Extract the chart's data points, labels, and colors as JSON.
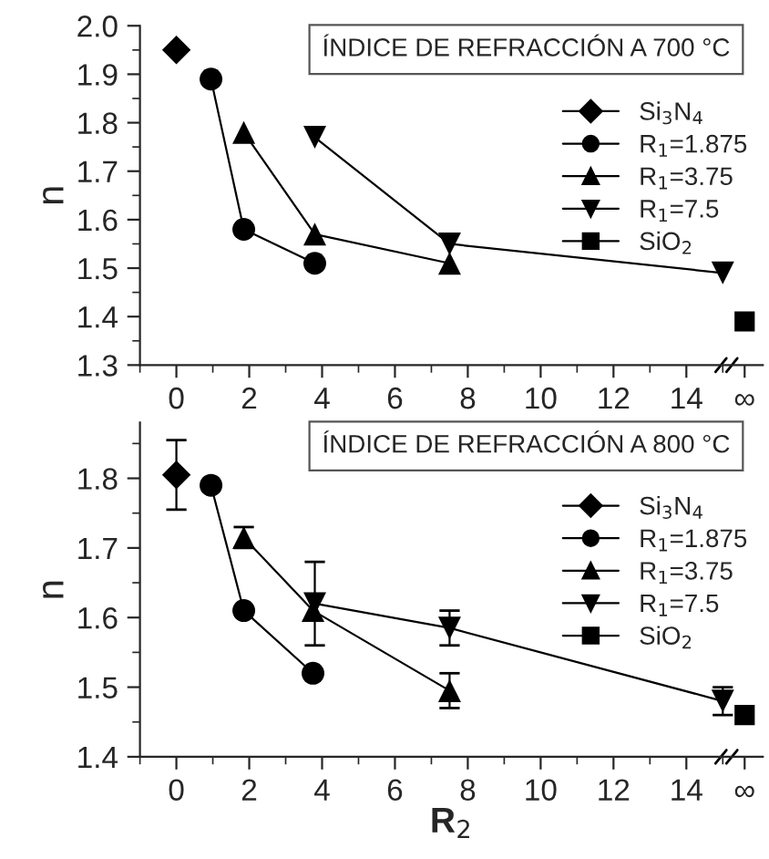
{
  "chart_data": [
    {
      "type": "line",
      "ylabel": "n",
      "annotations": [
        "ÍNDICE DE REFRACCIÓN A 700 °C"
      ],
      "xlim": [
        -0.9,
        16.1
      ],
      "ylim": [
        1.3,
        2.0
      ],
      "xticks": [
        0,
        2,
        4,
        6,
        8,
        10,
        12,
        14,
        {
          "value": 15.6,
          "label": "∞"
        }
      ],
      "yticks": [
        1.3,
        1.4,
        1.5,
        1.6,
        1.7,
        1.8,
        1.9,
        {
          "value": 2.0,
          "label": "2.0"
        }
      ],
      "legend": "right",
      "grid": false,
      "series": [
        {
          "name": "Si$_{3}$N$_{4}$",
          "type": "scatter",
          "marker": "diamond",
          "color": "#000000",
          "x": [
            0
          ],
          "values": [
            1.95
          ]
        },
        {
          "name": "R$_{1}$=1.875",
          "marker": "circle",
          "color": "#000000",
          "x": [
            0.95,
            1.85,
            3.8
          ],
          "values": [
            1.89,
            1.58,
            1.51
          ]
        },
        {
          "name": "R$_{1}$=3.75",
          "marker": "triangle",
          "color": "#000000",
          "x": [
            1.85,
            3.8,
            7.5
          ],
          "values": [
            1.78,
            1.57,
            1.51
          ]
        },
        {
          "name": "R$_{1}$=7.5",
          "marker": "triangle_down",
          "color": "#000000",
          "x": [
            3.8,
            7.5,
            15
          ],
          "values": [
            1.77,
            1.55,
            1.49
          ]
        },
        {
          "name": "SiO$_{2}$",
          "type": "scatter",
          "marker": "square",
          "color": "#000000",
          "x": [
            15.6
          ],
          "values": [
            1.39
          ]
        }
      ]
    },
    {
      "type": "line",
      "xlabel": "R$_{2}$",
      "ylabel": "n",
      "annotations": [
        "ÍNDICE DE REFRACCIÓN A 800 °C"
      ],
      "xlim": [
        -0.9,
        16.1
      ],
      "ylim": [
        1.4,
        1.88
      ],
      "xticks": [
        0,
        2,
        4,
        6,
        8,
        10,
        12,
        14,
        {
          "value": 15.6,
          "label": "∞"
        }
      ],
      "yticks": [
        1.4,
        1.5,
        1.6,
        1.7,
        1.8
      ],
      "legend": "right",
      "grid": false,
      "series": [
        {
          "name": "Si$_{3}$N$_{4}$",
          "type": "scatter",
          "marker": "diamond",
          "color": "#000000",
          "x": [
            0
          ],
          "values": [
            1.805
          ],
          "errors": [
            0.05
          ]
        },
        {
          "name": "R$_{1}$=1.875",
          "marker": "circle",
          "color": "#000000",
          "x": [
            0.95,
            1.85,
            3.75
          ],
          "values": [
            1.79,
            1.61,
            1.52
          ]
        },
        {
          "name": "R$_{1}$=3.75",
          "marker": "triangle",
          "color": "#000000",
          "x": [
            1.85,
            3.75,
            7.5
          ],
          "values": [
            1.715,
            1.61,
            1.495
          ],
          "errors": [
            0.015,
            null,
            0.025
          ]
        },
        {
          "name": "R$_{1}$=7.5",
          "marker": "triangle_down",
          "color": "#000000",
          "x": [
            3.8,
            7.5,
            15
          ],
          "values": [
            1.62,
            1.585,
            1.48
          ],
          "errors": [
            0.06,
            0.025,
            0.02
          ]
        },
        {
          "name": "SiO$_{2}$",
          "type": "scatter",
          "marker": "square",
          "color": "#000000",
          "x": [
            15.6
          ],
          "values": [
            1.46
          ]
        }
      ]
    }
  ]
}
